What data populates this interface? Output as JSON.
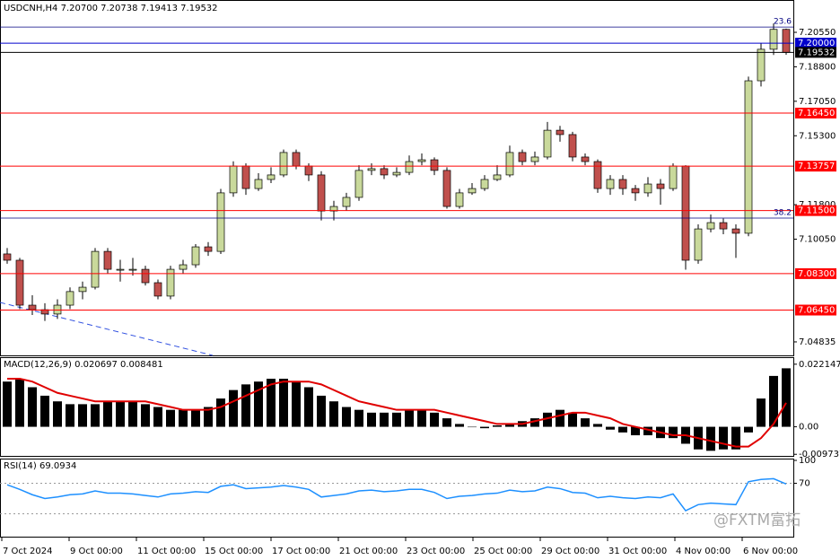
{
  "chart_data": [
    {
      "type": "candlestick",
      "title": "USDCNH,H4  7.20700 7.20738 7.19413 7.19532",
      "ylim": [
        7.0415,
        7.221
      ],
      "yticks": [
        {
          "value": 7.2055,
          "label": "7.20550"
        },
        {
          "value": 7.188,
          "label": "7.18800"
        },
        {
          "value": 7.1705,
          "label": "7.17050"
        },
        {
          "value": 7.153,
          "label": "7.15300"
        },
        {
          "value": 7.118,
          "label": "7.11800"
        },
        {
          "value": 7.1005,
          "label": "7.10050"
        },
        {
          "value": 7.04835,
          "label": "7.04835"
        }
      ],
      "up_color": "#c9d99b",
      "down_color": "#c0504d",
      "open": [
        7.093,
        7.0898,
        7.067,
        7.0647,
        7.0625,
        7.067,
        7.0739,
        7.0761,
        7.0943,
        7.0852,
        7.0852,
        7.0852,
        7.0784,
        7.0716,
        7.0852,
        7.0875,
        7.0966,
        7.0943,
        7.124,
        7.1376,
        7.1262,
        7.1308,
        7.1331,
        7.1445,
        7.1376,
        7.1331,
        7.1148,
        7.1171,
        7.1217,
        7.1354,
        7.1363,
        7.1331,
        7.1344,
        7.1399,
        7.1408,
        7.1354,
        7.1171,
        7.124,
        7.1262,
        7.1308,
        7.1331,
        7.1445,
        7.1399,
        7.1422,
        7.1558,
        7.1536,
        7.1422,
        7.1399,
        7.1262,
        7.1308,
        7.1262,
        7.124,
        7.1285,
        7.1262,
        7.1376,
        7.0898,
        7.1057,
        7.1089,
        7.1057,
        7.1035,
        7.1809,
        7.1969,
        7.207
      ],
      "high": [
        7.096,
        7.091,
        7.072,
        7.068,
        7.07,
        7.076,
        7.079,
        7.096,
        7.096,
        7.09,
        7.091,
        7.087,
        7.08,
        7.087,
        7.09,
        7.098,
        7.099,
        7.126,
        7.14,
        7.139,
        7.134,
        7.137,
        7.146,
        7.146,
        7.139,
        7.135,
        7.12,
        7.124,
        7.138,
        7.139,
        7.138,
        7.137,
        7.143,
        7.144,
        7.142,
        7.137,
        7.126,
        7.129,
        7.133,
        7.138,
        7.148,
        7.146,
        7.145,
        7.16,
        7.158,
        7.155,
        7.144,
        7.141,
        7.133,
        7.133,
        7.128,
        7.132,
        7.131,
        7.139,
        7.138,
        7.108,
        7.113,
        7.111,
        7.108,
        7.183,
        7.2,
        7.21,
        7.20738
      ],
      "low": [
        7.088,
        7.065,
        7.062,
        7.059,
        7.06,
        7.065,
        7.07,
        7.075,
        7.083,
        7.079,
        7.082,
        7.077,
        7.07,
        7.07,
        7.083,
        7.086,
        7.092,
        7.093,
        7.122,
        7.123,
        7.125,
        7.129,
        7.132,
        7.136,
        7.13,
        7.11,
        7.11,
        7.115,
        7.12,
        7.133,
        7.131,
        7.132,
        7.133,
        7.138,
        7.133,
        7.116,
        7.116,
        7.123,
        7.125,
        7.13,
        7.132,
        7.138,
        7.138,
        7.141,
        7.15,
        7.14,
        7.138,
        7.124,
        7.123,
        7.123,
        7.12,
        7.122,
        7.118,
        7.125,
        7.085,
        7.088,
        7.104,
        7.103,
        7.091,
        7.102,
        7.178,
        7.194,
        7.19413
      ],
      "close": [
        7.0898,
        7.067,
        7.0647,
        7.0625,
        7.067,
        7.0739,
        7.0761,
        7.0943,
        7.0852,
        7.0852,
        7.0852,
        7.0784,
        7.0716,
        7.0852,
        7.0875,
        7.0966,
        7.0943,
        7.124,
        7.1376,
        7.1262,
        7.1308,
        7.1331,
        7.1445,
        7.1376,
        7.1331,
        7.1148,
        7.1171,
        7.1217,
        7.1354,
        7.1363,
        7.1331,
        7.1344,
        7.1399,
        7.1408,
        7.1354,
        7.1171,
        7.124,
        7.1262,
        7.1308,
        7.1331,
        7.1445,
        7.1399,
        7.1422,
        7.1558,
        7.1536,
        7.1422,
        7.1399,
        7.1262,
        7.1308,
        7.1262,
        7.124,
        7.1285,
        7.1262,
        7.1376,
        7.0898,
        7.1057,
        7.1089,
        7.1057,
        7.1035,
        7.1809,
        7.1969,
        7.207,
        7.19532
      ],
      "levels": [
        {
          "value": 7.2,
          "label": "7.20000",
          "color": "#0000cc"
        },
        {
          "value": 7.19532,
          "label": "7.19532",
          "color": "#000000"
        },
        {
          "value": 7.1645,
          "label": "7.16450",
          "color": "#ff0000"
        },
        {
          "value": 7.13757,
          "label": "7.13757",
          "color": "#ff0000"
        },
        {
          "value": 7.115,
          "label": "7.11500",
          "color": "#ff0000"
        },
        {
          "value": 7.083,
          "label": "7.08300",
          "color": "#ff0000"
        },
        {
          "value": 7.0645,
          "label": "7.06450",
          "color": "#ff0000"
        }
      ],
      "fib_levels": [
        {
          "value": 7.2082,
          "label": "23.6",
          "color": "#000080"
        },
        {
          "value": 7.1112,
          "label": "38.2",
          "color": "#000080"
        }
      ],
      "xtick_labels": [
        "7 Oct 2024",
        "9 Oct 00:00",
        "11 Oct 00:00",
        "15 Oct 00:00",
        "17 Oct 00:00",
        "21 Oct 00:00",
        "23 Oct 00:00",
        "25 Oct 00:00",
        "29 Oct 00:00",
        "31 Oct 00:00",
        "4 Nov 00:00",
        "6 Nov 00:00"
      ],
      "watermark": "@FXTM富拓"
    },
    {
      "type": "macd",
      "title": "MACD(12,26,9) 0.020697 0.008481",
      "ylim": [
        -0.0103,
        0.024
      ],
      "yticks": [
        0.022147,
        {
          "value": 0,
          "label": "0.00"
        },
        -0.009737
      ],
      "series": [
        {
          "name": "MACD",
          "color": "#000000",
          "values": [
            0.016,
            0.017,
            0.014,
            0.011,
            0.009,
            0.008,
            0.008,
            0.008,
            0.009,
            0.009,
            0.009,
            0.008,
            0.007,
            0.006,
            0.006,
            0.006,
            0.007,
            0.01,
            0.013,
            0.015,
            0.016,
            0.017,
            0.017,
            0.016,
            0.014,
            0.011,
            0.009,
            0.007,
            0.006,
            0.005,
            0.005,
            0.005,
            0.006,
            0.006,
            0.005,
            0.003,
            0.001,
            0.0,
            -0.0005,
            0.0005,
            0.001,
            0.002,
            0.003,
            0.005,
            0.006,
            0.005,
            0.003,
            0.001,
            -0.001,
            -0.002,
            -0.003,
            -0.003,
            -0.004,
            -0.004,
            -0.006,
            -0.008,
            -0.0085,
            -0.008,
            -0.008,
            -0.002,
            0.01,
            0.018,
            0.020697
          ]
        },
        {
          "name": "Signal",
          "color": "#e00000",
          "values": [
            0.017,
            0.017,
            0.016,
            0.014,
            0.012,
            0.011,
            0.01,
            0.009,
            0.009,
            0.009,
            0.009,
            0.009,
            0.008,
            0.007,
            0.006,
            0.006,
            0.006,
            0.007,
            0.009,
            0.011,
            0.013,
            0.015,
            0.016,
            0.016,
            0.016,
            0.015,
            0.013,
            0.011,
            0.009,
            0.008,
            0.007,
            0.006,
            0.006,
            0.006,
            0.006,
            0.005,
            0.004,
            0.003,
            0.002,
            0.001,
            0.001,
            0.001,
            0.002,
            0.003,
            0.004,
            0.005,
            0.005,
            0.004,
            0.003,
            0.001,
            0.0,
            -0.001,
            -0.002,
            -0.003,
            -0.003,
            -0.004,
            -0.005,
            -0.006,
            -0.007,
            -0.007,
            -0.004,
            0.001,
            0.008481
          ]
        }
      ]
    },
    {
      "type": "rsi",
      "title": "RSI(14) 69.0934",
      "ylim": [
        0,
        100
      ],
      "yticks": [
        100,
        70
      ],
      "guides": [
        70,
        30
      ],
      "color": "#1e90ff",
      "values": [
        68,
        62,
        55,
        50,
        52,
        55,
        56,
        60,
        57,
        57,
        56,
        54,
        52,
        56,
        57,
        59,
        58,
        66,
        68,
        63,
        64,
        65,
        67,
        65,
        62,
        52,
        54,
        56,
        60,
        61,
        59,
        60,
        62,
        62,
        58,
        50,
        53,
        54,
        56,
        57,
        61,
        59,
        60,
        65,
        63,
        58,
        57,
        51,
        53,
        51,
        50,
        52,
        51,
        56,
        34,
        42,
        44,
        43,
        42,
        72,
        75,
        76,
        69.0934
      ]
    }
  ]
}
